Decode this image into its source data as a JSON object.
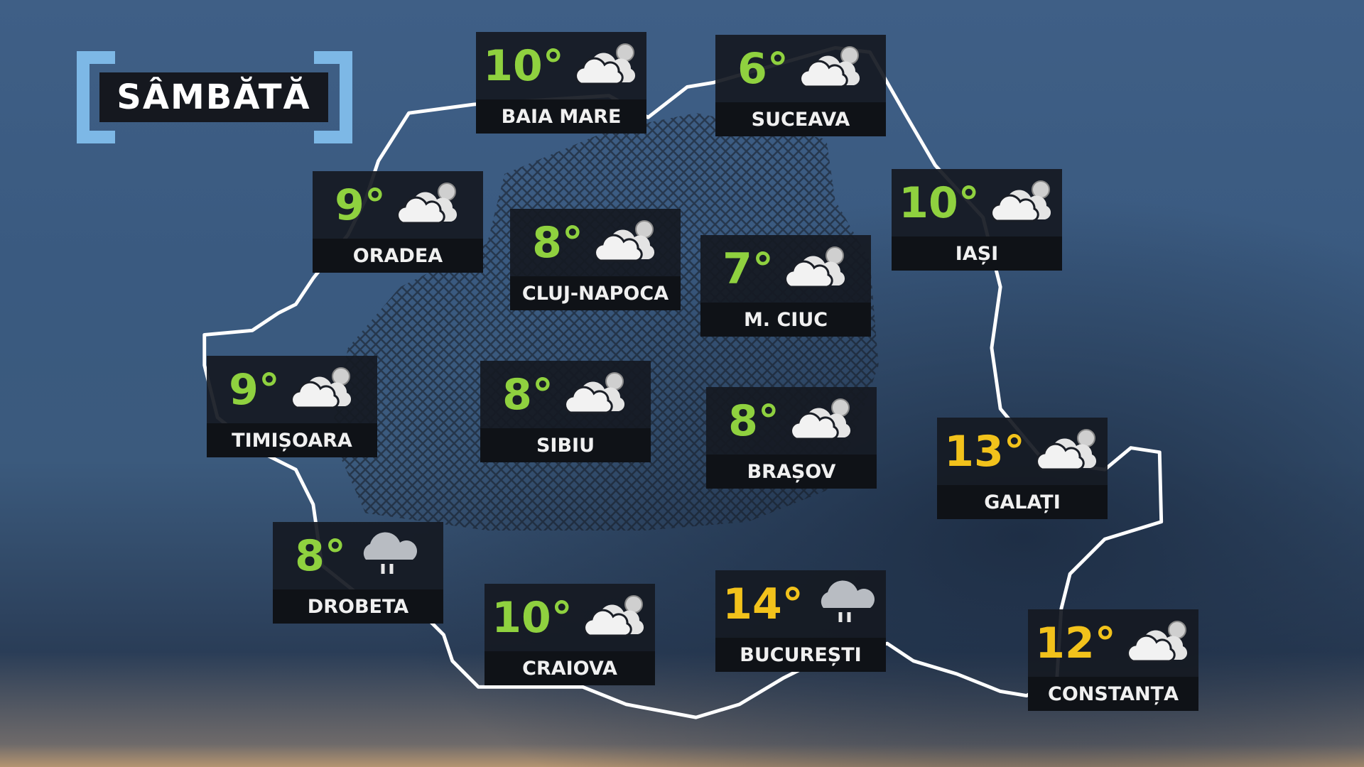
{
  "day_title": "SÂMBĂTĂ",
  "colors": {
    "mild": "#8fd13f",
    "warm": "#f2c21b",
    "bracket": "#7db8e6"
  },
  "cities": [
    {
      "name": "BAIA MARE",
      "temp": "10°",
      "icon": "partly-cloudy-icon"
    },
    {
      "name": "SUCEAVA",
      "temp": "6°",
      "icon": "partly-cloudy-icon"
    },
    {
      "name": "ORADEA",
      "temp": "9°",
      "icon": "partly-cloudy-icon"
    },
    {
      "name": "CLUJ-NAPOCA",
      "temp": "8°",
      "icon": "partly-cloudy-icon"
    },
    {
      "name": "IAȘI",
      "temp": "10°",
      "icon": "partly-cloudy-icon"
    },
    {
      "name": "M. CIUC",
      "temp": "7°",
      "icon": "partly-cloudy-icon"
    },
    {
      "name": "TIMIȘOARA",
      "temp": "9°",
      "icon": "partly-cloudy-icon"
    },
    {
      "name": "SIBIU",
      "temp": "8°",
      "icon": "partly-cloudy-icon"
    },
    {
      "name": "BRAȘOV",
      "temp": "8°",
      "icon": "partly-cloudy-icon"
    },
    {
      "name": "GALAȚI",
      "temp": "13°",
      "icon": "partly-cloudy-icon"
    },
    {
      "name": "DROBETA",
      "temp": "8°",
      "icon": "rain-cloud-icon"
    },
    {
      "name": "CRAIOVA",
      "temp": "10°",
      "icon": "partly-cloudy-icon"
    },
    {
      "name": "BUCUREȘTI",
      "temp": "14°",
      "icon": "rain-cloud-icon"
    },
    {
      "name": "CONSTANȚA",
      "temp": "12°",
      "icon": "partly-cloudy-icon"
    }
  ]
}
